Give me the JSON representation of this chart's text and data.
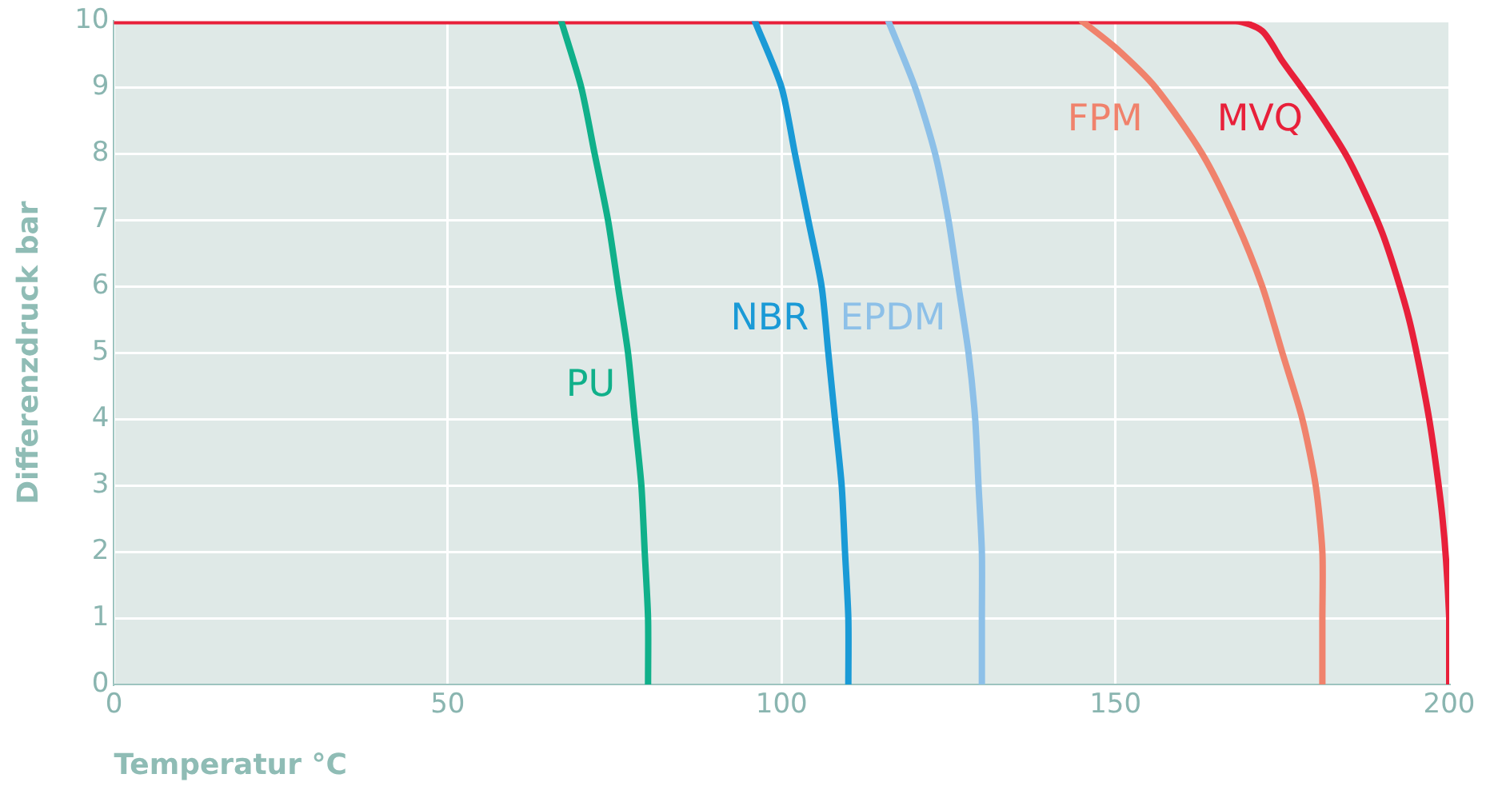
{
  "chart_data": {
    "type": "line",
    "xlabel": "Temperatur °C",
    "ylabel": "Differenzdruck bar",
    "xlim": [
      0,
      200
    ],
    "xticks": [
      0,
      50,
      100,
      150,
      200
    ],
    "ylim": [
      0,
      10
    ],
    "yticks": [
      0,
      1,
      2,
      3,
      4,
      5,
      6,
      7,
      8,
      9,
      10
    ],
    "grid": true,
    "legend": false,
    "marker": "none",
    "line_style": "solid",
    "series": [
      {
        "name": "PU",
        "color": "#10b08a",
        "x": [
          67,
          70,
          72,
          74,
          75.5,
          77,
          78,
          79,
          79.5,
          80,
          80
        ],
        "values": [
          10,
          9,
          8,
          7,
          6,
          5,
          4,
          3,
          2,
          1,
          0
        ]
      },
      {
        "name": "NBR",
        "color": "#1a9ad6",
        "x": [
          96,
          100,
          102,
          104,
          106,
          107,
          108,
          109,
          109.5,
          110,
          110
        ],
        "values": [
          10,
          9,
          8,
          7,
          6,
          5,
          4,
          3,
          2,
          1,
          0
        ]
      },
      {
        "name": "EPDM",
        "color": "#8dc0e8",
        "x": [
          116,
          120,
          123,
          125,
          126.5,
          128,
          129,
          129.5,
          130,
          130,
          130
        ],
        "values": [
          10,
          9,
          8,
          7,
          6,
          5,
          4,
          3,
          2,
          1,
          0
        ]
      },
      {
        "name": "FPM",
        "color": "#f0826c",
        "x": [
          145,
          150,
          156,
          163,
          168,
          172,
          175,
          178,
          180,
          181,
          181,
          181
        ],
        "values": [
          10,
          9.6,
          9,
          8,
          7,
          6,
          5,
          4,
          3,
          2,
          1,
          0
        ]
      },
      {
        "name": "MVQ",
        "color": "#e8203a",
        "x": [
          0,
          168,
          172,
          175,
          180,
          185,
          190,
          194,
          197,
          199,
          200,
          200
        ],
        "values": [
          10,
          10,
          9.85,
          9.4,
          8.7,
          7.9,
          6.8,
          5.5,
          4,
          2.5,
          1,
          0
        ]
      }
    ]
  }
}
